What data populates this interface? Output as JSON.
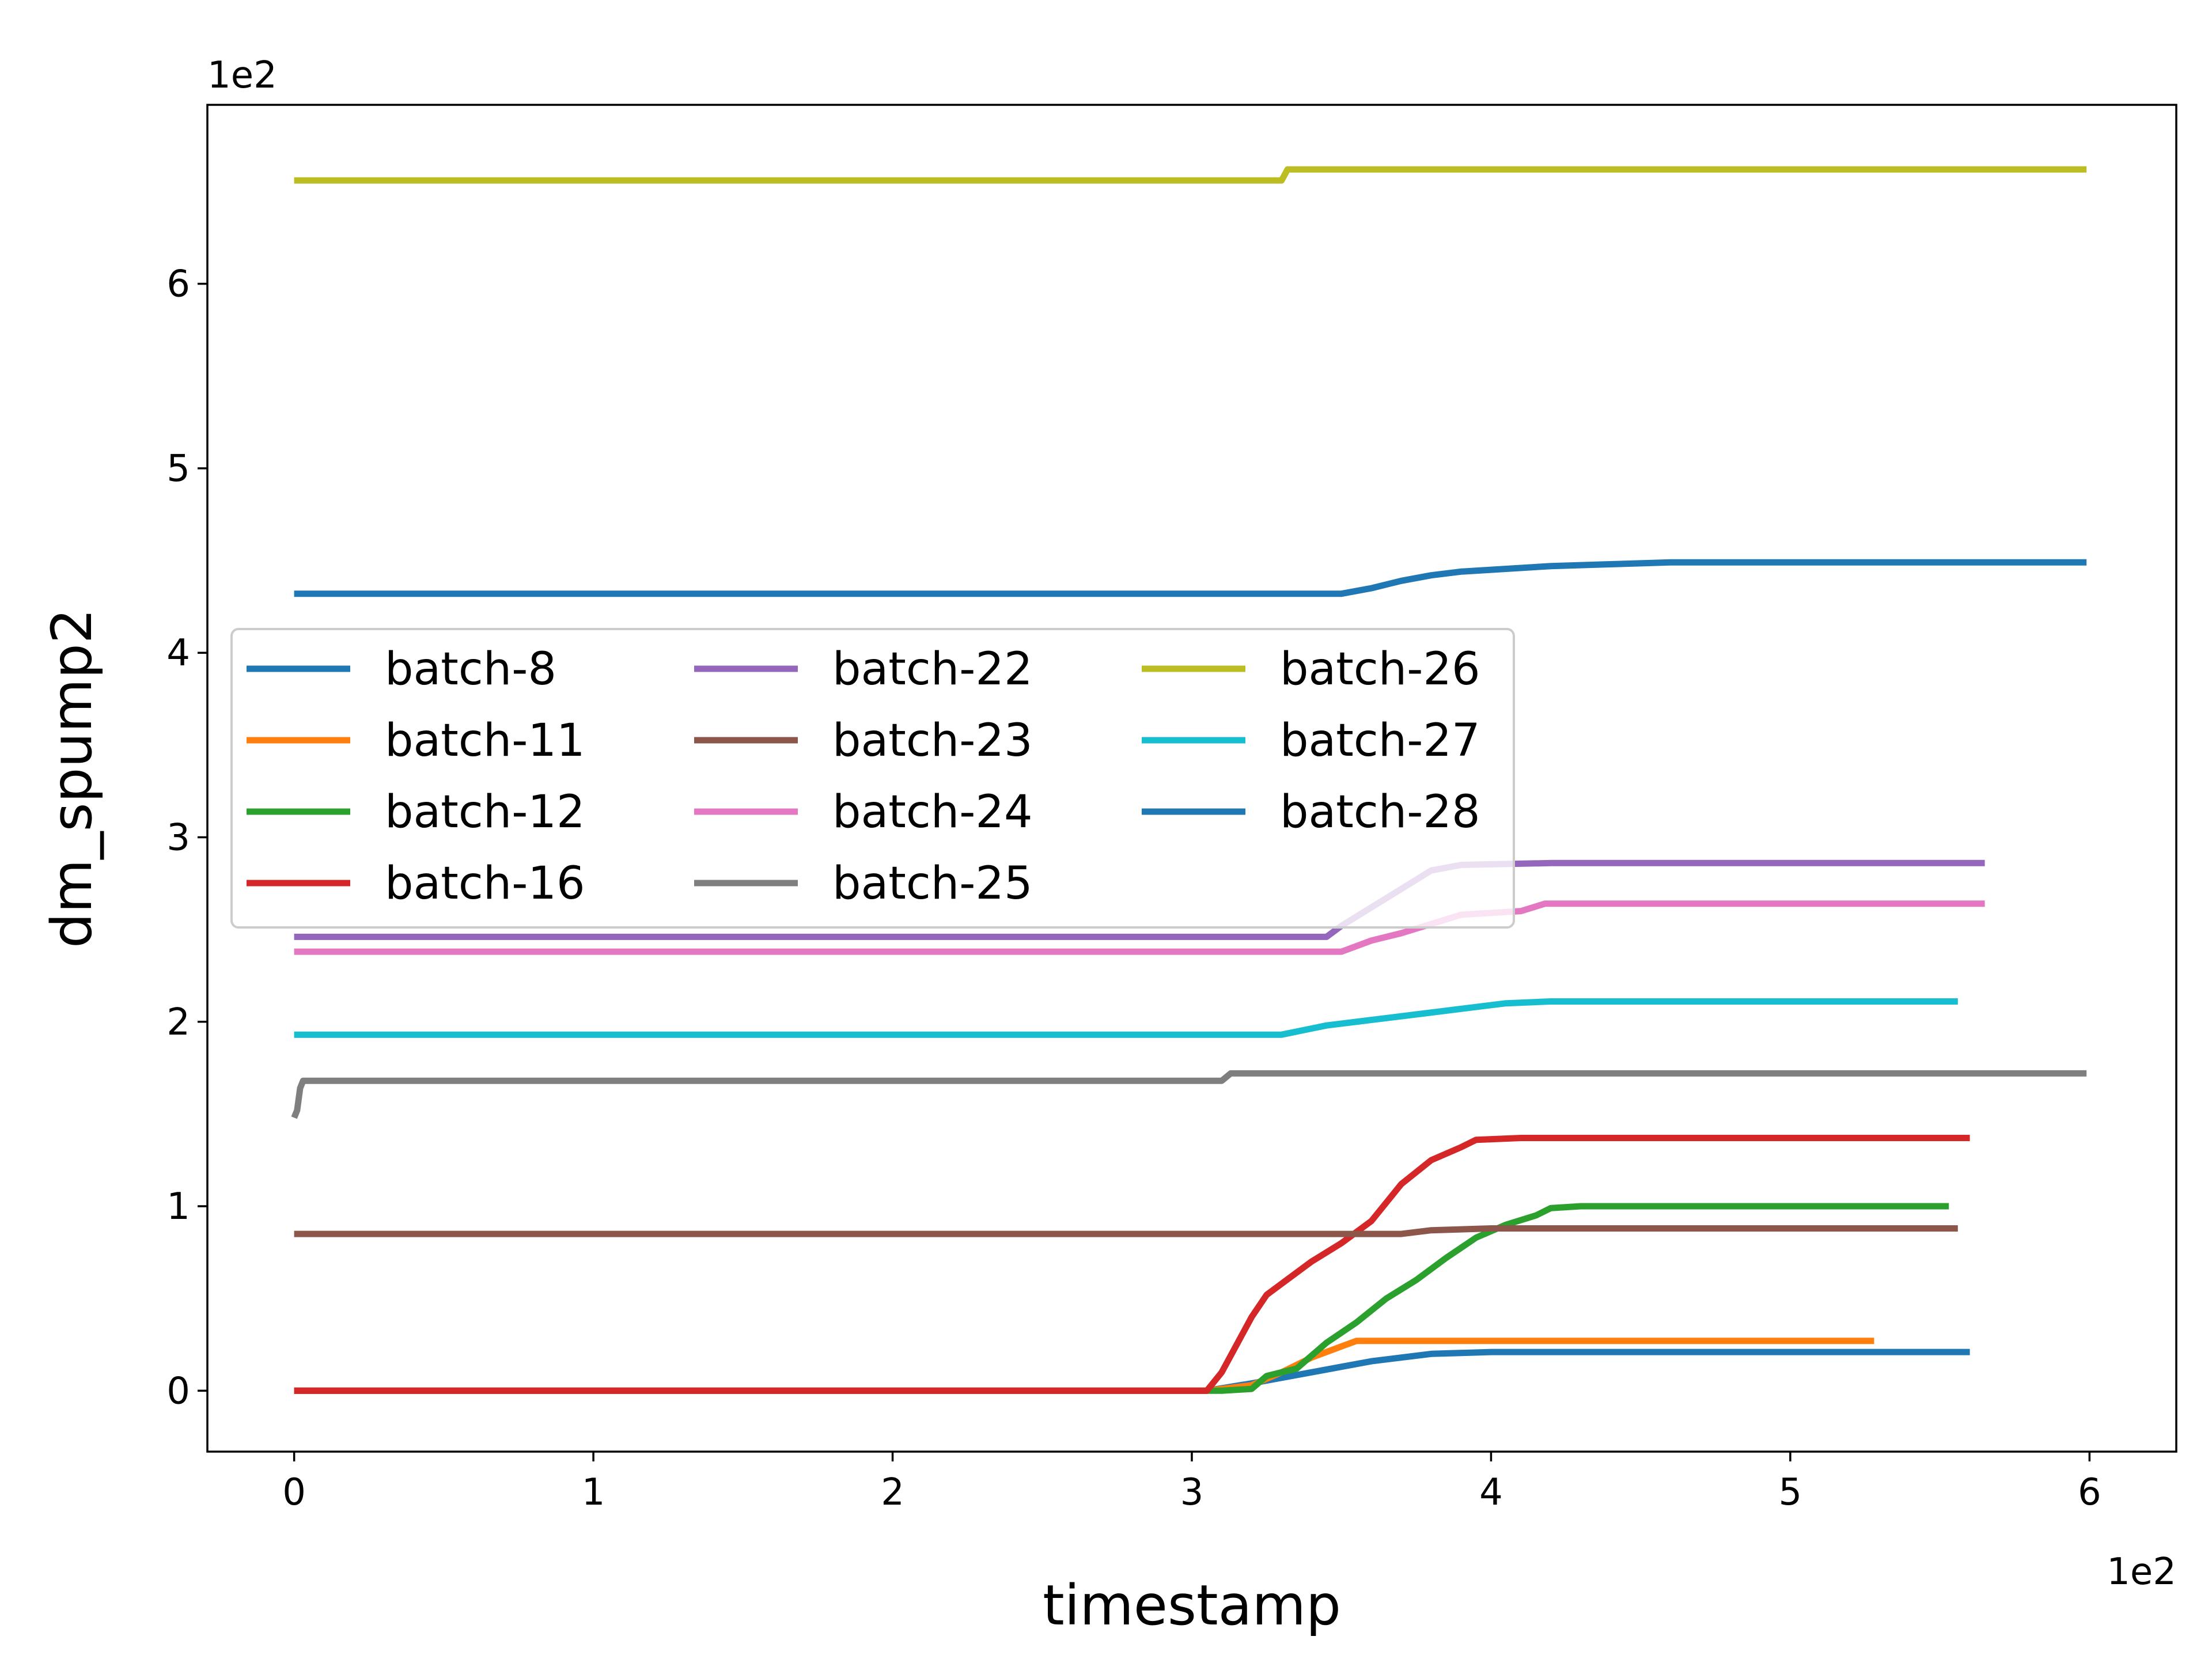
{
  "chart_data": {
    "type": "line",
    "title": "",
    "xlabel": "timestamp",
    "ylabel": "dm_spump2",
    "x_offset_text": "1e2",
    "y_offset_text": "1e2",
    "xlim": [
      -29,
      629
    ],
    "ylim": [
      -33,
      697
    ],
    "xticks": [
      0,
      100,
      200,
      300,
      400,
      500,
      600
    ],
    "xtick_labels": [
      "0",
      "1",
      "2",
      "3",
      "4",
      "5",
      "6"
    ],
    "yticks": [
      0,
      100,
      200,
      300,
      400,
      500,
      600
    ],
    "ytick_labels": [
      "0",
      "1",
      "2",
      "3",
      "4",
      "5",
      "6"
    ],
    "grid": false,
    "legend": {
      "placement": "center-left",
      "columns": 3
    },
    "series": [
      {
        "name": "batch-8",
        "color": "#1f77b4",
        "points": [
          [
            0,
            0
          ],
          [
            305,
            0
          ],
          [
            320,
            4
          ],
          [
            330,
            7
          ],
          [
            340,
            10
          ],
          [
            350,
            13
          ],
          [
            360,
            16
          ],
          [
            370,
            18
          ],
          [
            380,
            20
          ],
          [
            400,
            21
          ],
          [
            560,
            21
          ]
        ]
      },
      {
        "name": "batch-11",
        "color": "#ff7f0e",
        "points": [
          [
            0,
            0
          ],
          [
            305,
            0
          ],
          [
            320,
            3
          ],
          [
            330,
            10
          ],
          [
            340,
            18
          ],
          [
            350,
            24
          ],
          [
            355,
            27
          ],
          [
            380,
            27
          ],
          [
            528,
            27
          ]
        ]
      },
      {
        "name": "batch-12",
        "color": "#2ca02c",
        "points": [
          [
            0,
            0
          ],
          [
            310,
            0
          ],
          [
            320,
            1
          ],
          [
            325,
            8
          ],
          [
            335,
            12
          ],
          [
            345,
            26
          ],
          [
            355,
            37
          ],
          [
            365,
            50
          ],
          [
            375,
            60
          ],
          [
            385,
            72
          ],
          [
            395,
            83
          ],
          [
            405,
            90
          ],
          [
            415,
            95
          ],
          [
            420,
            99
          ],
          [
            430,
            100
          ],
          [
            553,
            100
          ]
        ]
      },
      {
        "name": "batch-16",
        "color": "#d62728",
        "points": [
          [
            0,
            0
          ],
          [
            305,
            0
          ],
          [
            310,
            10
          ],
          [
            315,
            25
          ],
          [
            320,
            40
          ],
          [
            325,
            52
          ],
          [
            330,
            58
          ],
          [
            340,
            70
          ],
          [
            350,
            80
          ],
          [
            360,
            92
          ],
          [
            370,
            112
          ],
          [
            380,
            125
          ],
          [
            390,
            132
          ],
          [
            395,
            136
          ],
          [
            410,
            137
          ],
          [
            560,
            137
          ]
        ]
      },
      {
        "name": "batch-22",
        "color": "#9467bd",
        "points": [
          [
            0,
            246
          ],
          [
            345,
            246
          ],
          [
            350,
            252
          ],
          [
            360,
            262
          ],
          [
            370,
            272
          ],
          [
            380,
            282
          ],
          [
            390,
            285
          ],
          [
            420,
            286
          ],
          [
            565,
            286
          ]
        ]
      },
      {
        "name": "batch-23",
        "color": "#8c564b",
        "points": [
          [
            0,
            85
          ],
          [
            370,
            85
          ],
          [
            380,
            87
          ],
          [
            400,
            88
          ],
          [
            556,
            88
          ]
        ]
      },
      {
        "name": "batch-24",
        "color": "#e377c2",
        "points": [
          [
            0,
            238
          ],
          [
            350,
            238
          ],
          [
            360,
            244
          ],
          [
            370,
            248
          ],
          [
            380,
            253
          ],
          [
            390,
            258
          ],
          [
            410,
            260
          ],
          [
            418,
            264
          ],
          [
            565,
            264
          ]
        ]
      },
      {
        "name": "batch-25",
        "color": "#7f7f7f",
        "points": [
          [
            0,
            148
          ],
          [
            1,
            152
          ],
          [
            2,
            164
          ],
          [
            3,
            168
          ],
          [
            310,
            168
          ],
          [
            313,
            172
          ],
          [
            599,
            172
          ]
        ]
      },
      {
        "name": "batch-26",
        "color": "#bcbd22",
        "points": [
          [
            0,
            656
          ],
          [
            330,
            656
          ],
          [
            332,
            662
          ],
          [
            599,
            662
          ]
        ]
      },
      {
        "name": "batch-27",
        "color": "#17becf",
        "points": [
          [
            0,
            193
          ],
          [
            330,
            193
          ],
          [
            345,
            198
          ],
          [
            360,
            201
          ],
          [
            375,
            204
          ],
          [
            390,
            207
          ],
          [
            405,
            210
          ],
          [
            420,
            211
          ],
          [
            556,
            211
          ]
        ]
      },
      {
        "name": "batch-28",
        "color": "#1f77b4",
        "points": [
          [
            0,
            432
          ],
          [
            350,
            432
          ],
          [
            360,
            435
          ],
          [
            370,
            439
          ],
          [
            380,
            442
          ],
          [
            390,
            444
          ],
          [
            400,
            445
          ],
          [
            420,
            447
          ],
          [
            440,
            448
          ],
          [
            460,
            449
          ],
          [
            599,
            449
          ]
        ]
      }
    ]
  }
}
